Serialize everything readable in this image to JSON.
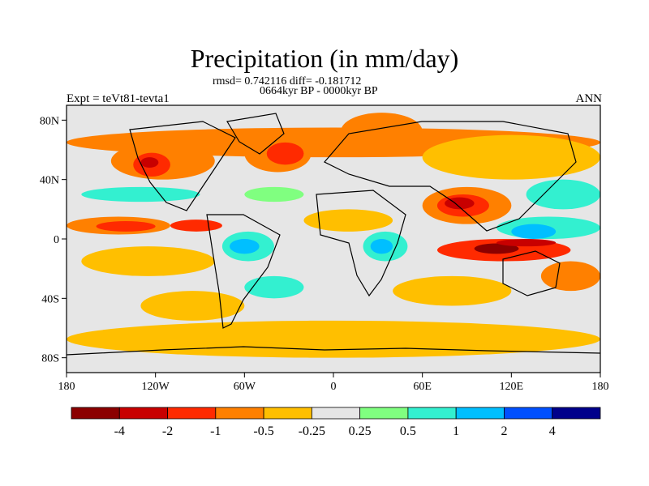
{
  "title": "Precipitation (in mm/day)",
  "stats": "rmsd= 0.742116  diff= -0.181712",
  "period": "0664kyr BP - 0000kyr BP",
  "experiment": "Expt = teVt81-tevta1",
  "season": "ANN",
  "map": {
    "lon_range": [
      -180,
      180
    ],
    "lat_range": [
      -90,
      90
    ],
    "background_color": "#e6e6e6"
  },
  "axes": {
    "lat_ticks": [
      {
        "lat": 80,
        "label": "80N"
      },
      {
        "lat": 40,
        "label": "40N"
      },
      {
        "lat": 0,
        "label": "0"
      },
      {
        "lat": -40,
        "label": "40S"
      },
      {
        "lat": -80,
        "label": "80S"
      }
    ],
    "lon_ticks": [
      {
        "lon": -180,
        "label": "180"
      },
      {
        "lon": -120,
        "label": "120W"
      },
      {
        "lon": -60,
        "label": "60W"
      },
      {
        "lon": 0,
        "label": "0"
      },
      {
        "lon": 60,
        "label": "60E"
      },
      {
        "lon": 120,
        "label": "120E"
      },
      {
        "lon": 180,
        "label": "180"
      }
    ]
  },
  "colorbar": {
    "colors": [
      "#8b0000",
      "#c80000",
      "#ff2a00",
      "#ff8000",
      "#ffbf00",
      "#e6e6e6",
      "#80ff80",
      "#33f0d0",
      "#00bfff",
      "#0050ff",
      "#00008b"
    ],
    "labels": [
      "-4",
      "-2",
      "-1",
      "-0.5",
      "-0.25",
      "0.25",
      "0.5",
      "1",
      "2",
      "4"
    ]
  },
  "legend": {
    "0": "< -4",
    "1": "-4 to -2",
    "2": "-2 to -1",
    "3": "-1 to -0.5",
    "4": "-0.5 to -0.25",
    "5": "-0.25 to 0.25",
    "6": "0.25 to 0.5",
    "7": "0.5 to 1",
    "8": "1 to 2",
    "9": "2 to 4",
    "10": "> 4"
  },
  "anomaly_regions": [
    {
      "class": 3,
      "lon": [
        -180,
        180
      ],
      "lat": [
        55,
        75
      ]
    },
    {
      "class": 4,
      "lon": [
        -180,
        180
      ],
      "lat": [
        -80,
        -55
      ]
    },
    {
      "class": 3,
      "lon": [
        -150,
        -80
      ],
      "lat": [
        40,
        65
      ]
    },
    {
      "class": 2,
      "lon": [
        -135,
        -110
      ],
      "lat": [
        42,
        58
      ]
    },
    {
      "class": 1,
      "lon": [
        -130,
        -118
      ],
      "lat": [
        48,
        55
      ]
    },
    {
      "class": 3,
      "lon": [
        -60,
        -15
      ],
      "lat": [
        45,
        70
      ]
    },
    {
      "class": 2,
      "lon": [
        -45,
        -20
      ],
      "lat": [
        50,
        65
      ]
    },
    {
      "class": 3,
      "lon": [
        5,
        60
      ],
      "lat": [
        60,
        85
      ]
    },
    {
      "class": 4,
      "lon": [
        60,
        180
      ],
      "lat": [
        40,
        70
      ]
    },
    {
      "class": 3,
      "lon": [
        -180,
        -110
      ],
      "lat": [
        3,
        15
      ]
    },
    {
      "class": 2,
      "lon": [
        -160,
        -120
      ],
      "lat": [
        5,
        12
      ]
    },
    {
      "class": 2,
      "lon": [
        -110,
        -75
      ],
      "lat": [
        5,
        13
      ]
    },
    {
      "class": 7,
      "lon": [
        -75,
        -40
      ],
      "lat": [
        -15,
        5
      ]
    },
    {
      "class": 8,
      "lon": [
        -70,
        -50
      ],
      "lat": [
        -10,
        0
      ]
    },
    {
      "class": 7,
      "lon": [
        -170,
        -90
      ],
      "lat": [
        25,
        35
      ]
    },
    {
      "class": 6,
      "lon": [
        -60,
        -20
      ],
      "lat": [
        25,
        35
      ]
    },
    {
      "class": 4,
      "lon": [
        -170,
        -80
      ],
      "lat": [
        -25,
        -5
      ]
    },
    {
      "class": 7,
      "lon": [
        -60,
        -20
      ],
      "lat": [
        -40,
        -25
      ]
    },
    {
      "class": 7,
      "lon": [
        20,
        50
      ],
      "lat": [
        -15,
        5
      ]
    },
    {
      "class": 8,
      "lon": [
        25,
        40
      ],
      "lat": [
        -10,
        0
      ]
    },
    {
      "class": 4,
      "lon": [
        -20,
        40
      ],
      "lat": [
        5,
        20
      ]
    },
    {
      "class": 3,
      "lon": [
        60,
        120
      ],
      "lat": [
        10,
        35
      ]
    },
    {
      "class": 2,
      "lon": [
        70,
        105
      ],
      "lat": [
        15,
        30
      ]
    },
    {
      "class": 1,
      "lon": [
        75,
        95
      ],
      "lat": [
        20,
        28
      ]
    },
    {
      "class": 2,
      "lon": [
        70,
        160
      ],
      "lat": [
        -15,
        0
      ]
    },
    {
      "class": 0,
      "lon": [
        95,
        125
      ],
      "lat": [
        -10,
        -3
      ]
    },
    {
      "class": 1,
      "lon": [
        110,
        150
      ],
      "lat": [
        -5,
        0
      ]
    },
    {
      "class": 7,
      "lon": [
        110,
        180
      ],
      "lat": [
        0,
        15
      ]
    },
    {
      "class": 8,
      "lon": [
        120,
        150
      ],
      "lat": [
        0,
        10
      ]
    },
    {
      "class": 3,
      "lon": [
        140,
        180
      ],
      "lat": [
        -35,
        -15
      ]
    },
    {
      "class": 4,
      "lon": [
        40,
        120
      ],
      "lat": [
        -45,
        -25
      ]
    },
    {
      "class": 7,
      "lon": [
        130,
        180
      ],
      "lat": [
        20,
        40
      ]
    },
    {
      "class": 4,
      "lon": [
        -130,
        -60
      ],
      "lat": [
        -55,
        -35
      ]
    }
  ]
}
